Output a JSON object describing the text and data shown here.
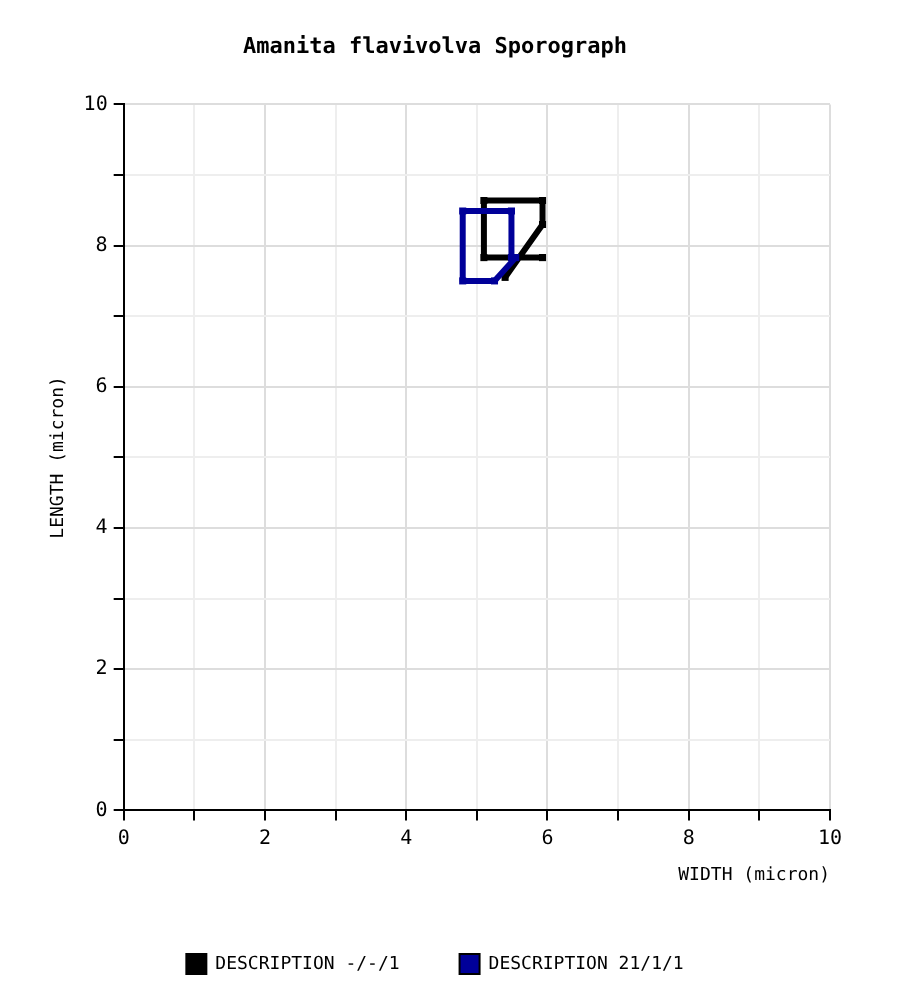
{
  "chart_data": {
    "type": "line",
    "title": "Amanita flavivolva Sporograph",
    "xlabel": "WIDTH (micron)",
    "ylabel": "LENGTH (micron)",
    "xlim": [
      0,
      10
    ],
    "ylim": [
      0,
      10
    ],
    "xticks": [
      0,
      {
        "value": 1,
        "label": null
      },
      2,
      {
        "value": 3,
        "label": null
      },
      4,
      {
        "value": 5,
        "label": null
      },
      6,
      {
        "value": 7,
        "label": null
      },
      8,
      {
        "value": 9,
        "label": null
      },
      10
    ],
    "yticks": [
      0,
      {
        "value": 1,
        "label": null
      },
      2,
      {
        "value": 3,
        "label": null
      },
      4,
      {
        "value": 5,
        "label": null
      },
      6,
      {
        "value": 7,
        "label": null
      },
      8,
      {
        "value": 9,
        "label": null
      },
      10
    ],
    "grid": true,
    "legend": "bottom",
    "marker": "square",
    "line_style": "solid",
    "series": [
      {
        "name": "DESCRIPTION -/-/1",
        "color": "#000000",
        "x": [
          5.93,
          5.1,
          5.1,
          5.93,
          5.93,
          5.4
        ],
        "values": [
          7.83,
          7.83,
          8.64,
          8.64,
          8.3,
          7.55
        ]
      },
      {
        "name": "DESCRIPTION 21/1/1",
        "color": "#000099",
        "x": [
          5.49,
          5.49,
          4.8,
          4.8,
          5.25,
          5.55
        ],
        "values": [
          7.83,
          8.49,
          8.49,
          7.5,
          7.5,
          7.83
        ]
      }
    ]
  }
}
